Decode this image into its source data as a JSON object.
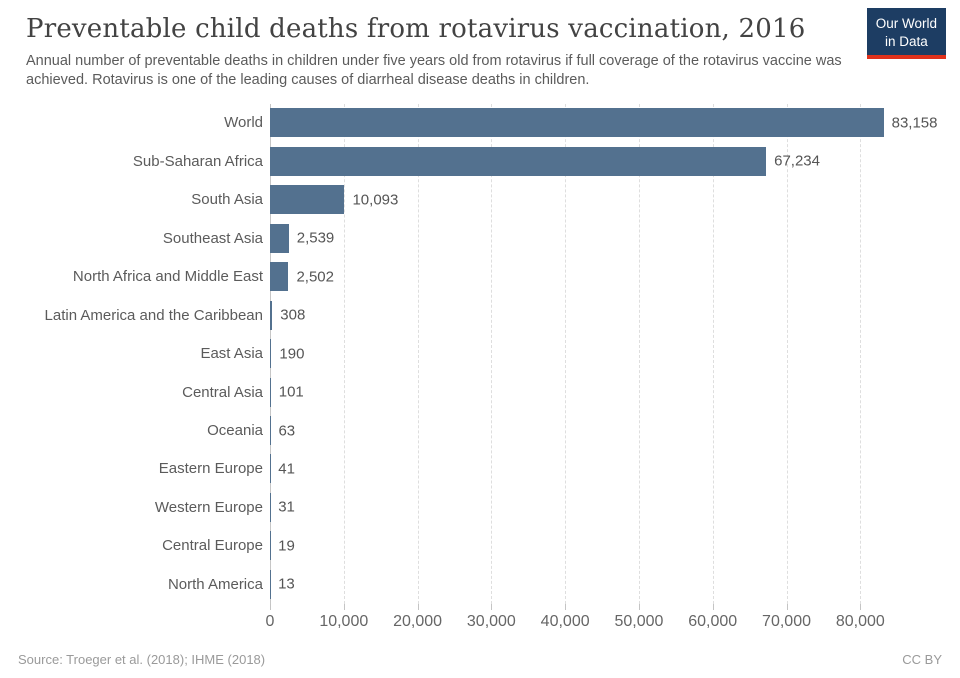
{
  "header": {
    "title": "Preventable child deaths from rotavirus vaccination, 2016",
    "subtitle": "Annual number of preventable deaths in children under five years old from rotavirus if full coverage of the rotavirus vaccine was achieved. Rotavirus is one of the leading causes of diarrheal disease deaths in children.",
    "logo": {
      "line1": "Our World",
      "line2": "in Data"
    }
  },
  "chart_data": {
    "type": "bar",
    "orientation": "horizontal",
    "title": "Preventable child deaths from rotavirus vaccination, 2016",
    "categories": [
      "World",
      "Sub-Saharan Africa",
      "South Asia",
      "Southeast Asia",
      "North Africa and Middle East",
      "Latin America and the Caribbean",
      "East Asia",
      "Central Asia",
      "Oceania",
      "Eastern Europe",
      "Western Europe",
      "Central Europe",
      "North America"
    ],
    "values": [
      83158,
      67234,
      10093,
      2539,
      2502,
      308,
      190,
      101,
      63,
      41,
      31,
      19,
      13
    ],
    "value_labels": [
      "83,158",
      "67,234",
      "10,093",
      "2,539",
      "2,502",
      "308",
      "190",
      "101",
      "63",
      "41",
      "31",
      "19",
      "13"
    ],
    "xlabel": "",
    "ylabel": "",
    "xlim": [
      0,
      90800
    ],
    "x_ticks": [
      0,
      10000,
      20000,
      30000,
      40000,
      50000,
      60000,
      70000,
      80000
    ],
    "x_tick_labels": [
      "0",
      "10,000",
      "20,000",
      "30,000",
      "40,000",
      "50,000",
      "60,000",
      "70,000",
      "80,000"
    ],
    "grid": true,
    "legend": false,
    "bar_color": "#53718f"
  },
  "colors": {
    "bar": "#53718f",
    "logo_background": "#1d3d63",
    "logo_stripe": "#e0311b",
    "gridline": "#dedede"
  },
  "footer": {
    "source": "Source: Troeger et al. (2018); IHME (2018)",
    "license": "CC BY"
  }
}
